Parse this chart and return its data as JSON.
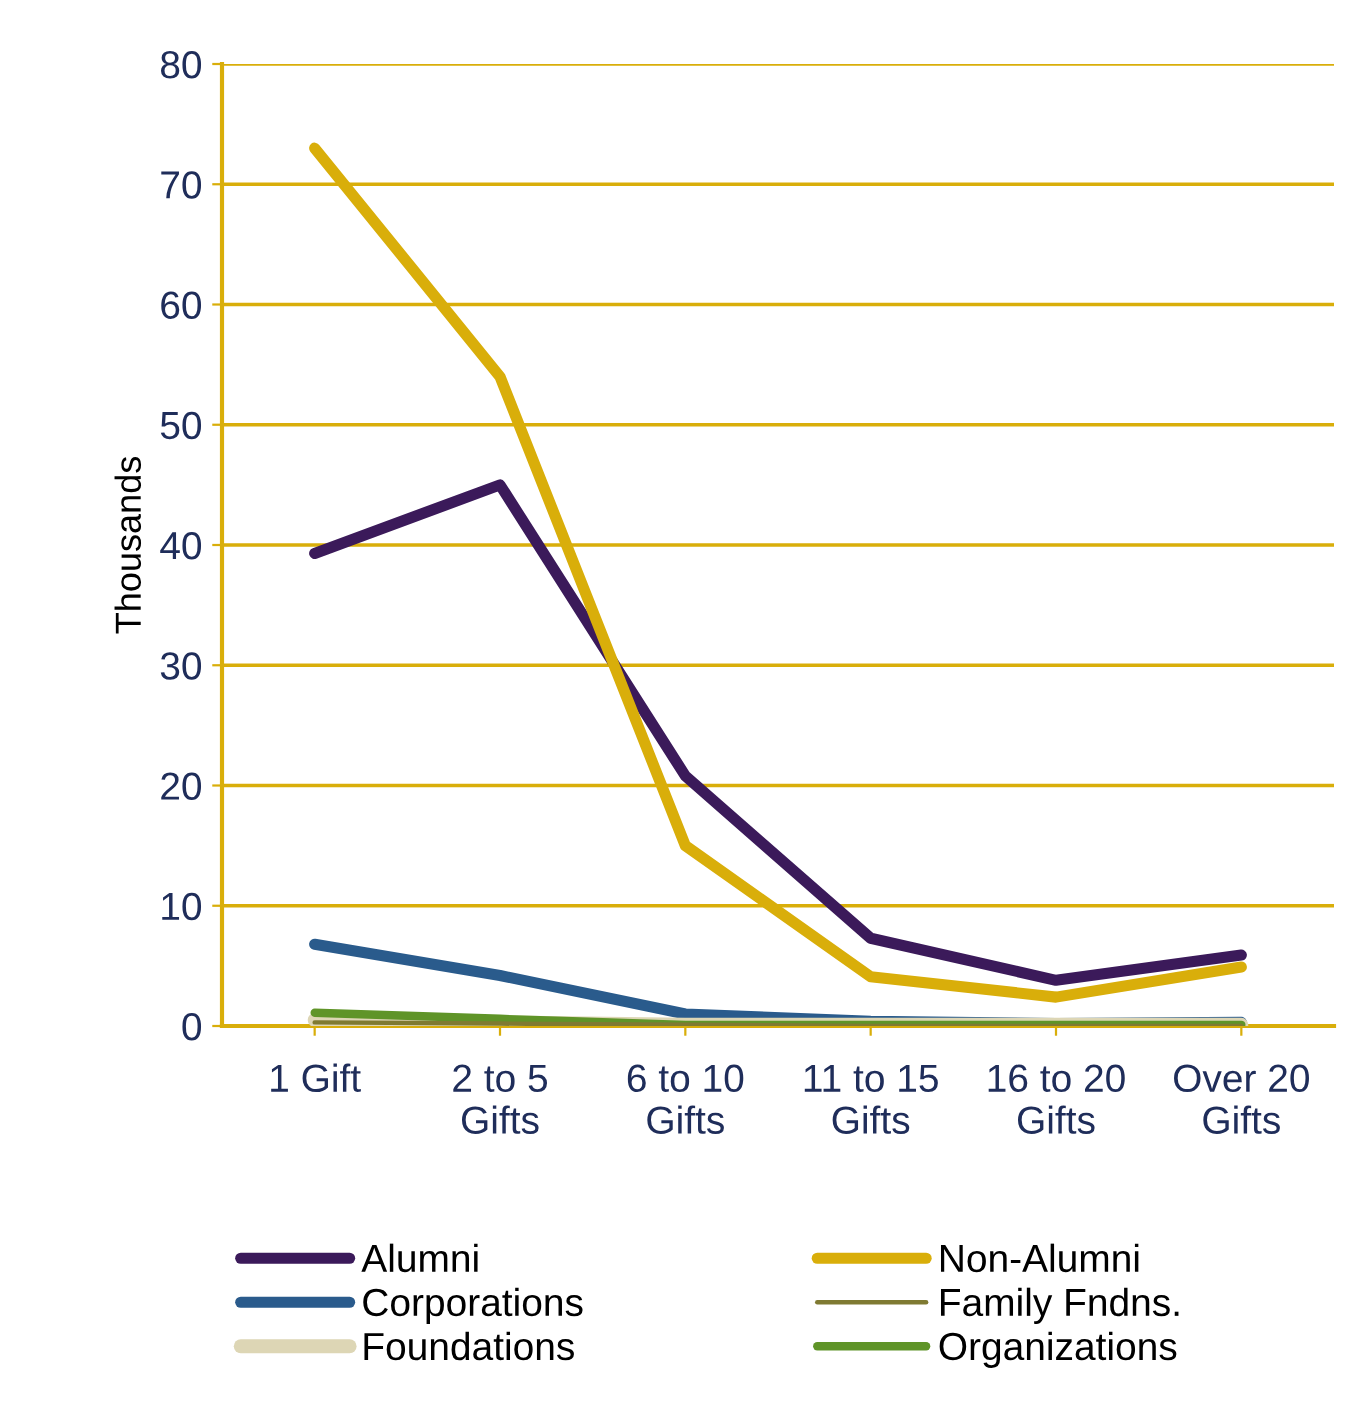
{
  "chart_data": {
    "type": "line",
    "ylabel": "Thousands",
    "categories": [
      "1 Gift",
      "2 to 5\nGifts",
      "6 to 10\nGifts",
      "11 to 15\nGifts",
      "16 to 20\nGifts",
      "Over 20\nGifts"
    ],
    "series": [
      {
        "name": "Alumni",
        "color": "#3b1a5a",
        "values": [
          39.3,
          45.0,
          20.8,
          7.3,
          3.8,
          5.9
        ]
      },
      {
        "name": "Non-Alumni",
        "color": "#d9ae0a",
        "values": [
          73.0,
          54.0,
          15.0,
          4.1,
          2.4,
          4.9
        ]
      },
      {
        "name": "Corporations",
        "color": "#2a5b8c",
        "values": [
          6.8,
          4.2,
          1.0,
          0.4,
          0.2,
          0.3
        ]
      },
      {
        "name": "Family Fndns.",
        "color": "#7f7a32",
        "values": [
          0.3,
          0.2,
          0.1,
          0.0,
          0.0,
          0.0
        ]
      },
      {
        "name": "Foundations",
        "color": "#ddd6b5",
        "values": [
          0.5,
          0.3,
          0.1,
          0.1,
          0.1,
          0.1
        ]
      },
      {
        "name": "Organizations",
        "color": "#5f9428",
        "values": [
          1.1,
          0.6,
          0.1,
          0.1,
          0.1,
          0.1
        ]
      }
    ],
    "ylim": [
      0,
      80
    ],
    "yticks": [
      0,
      10,
      20,
      30,
      40,
      50,
      60,
      70,
      80
    ],
    "grid": "y",
    "legend": "bottom",
    "marker": "none",
    "line_style": "solid"
  }
}
